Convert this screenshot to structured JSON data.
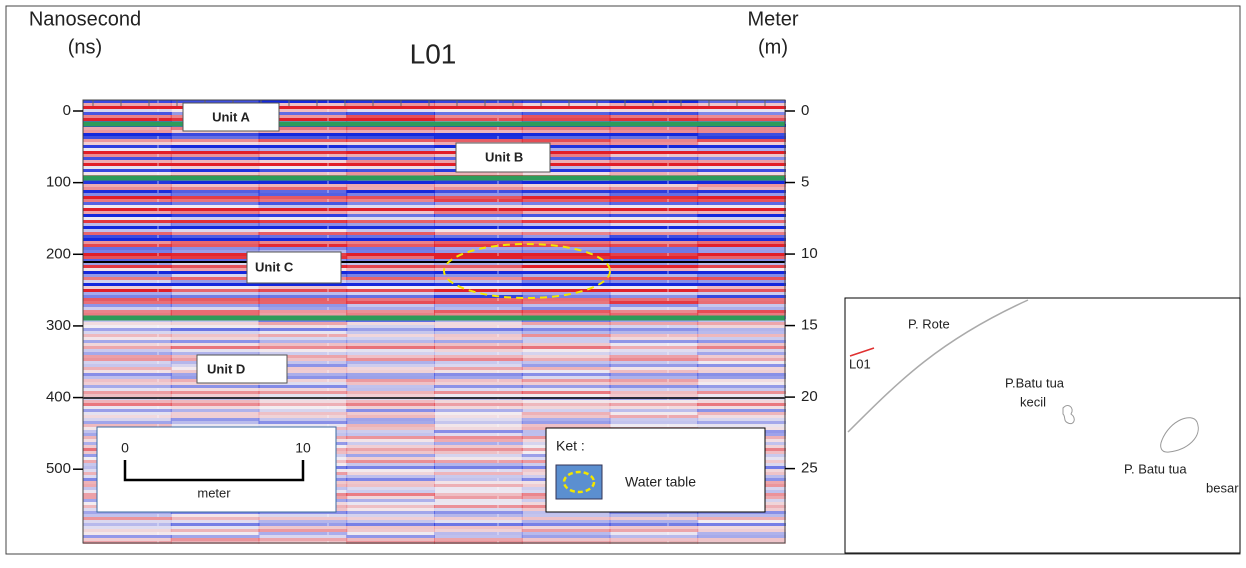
{
  "chart_data": {
    "type": "radargram",
    "title": "L01",
    "ylabel": [
      "Nanosecond",
      "(ns)"
    ],
    "y2label": [
      "Meter",
      "(m)"
    ],
    "ylim": [
      0,
      603
    ],
    "yticks": [
      0,
      100,
      200,
      300,
      400,
      500
    ],
    "y2lim": [
      0,
      30.2
    ],
    "y2ticks": [
      0,
      5,
      10,
      15,
      20,
      25
    ],
    "annotations": [
      "Unit A",
      "Unit B",
      "Unit C",
      "Unit D"
    ],
    "scale_bar": {
      "ticks": [
        0,
        10
      ],
      "label": "meter"
    },
    "legend": {
      "title": "Ket :",
      "entries": [
        "Water table"
      ]
    }
  },
  "map": {
    "labels": [
      "P. Rote",
      "L01",
      "P.Batu tua",
      "kecil",
      "P. Batu tua",
      "besar"
    ]
  }
}
